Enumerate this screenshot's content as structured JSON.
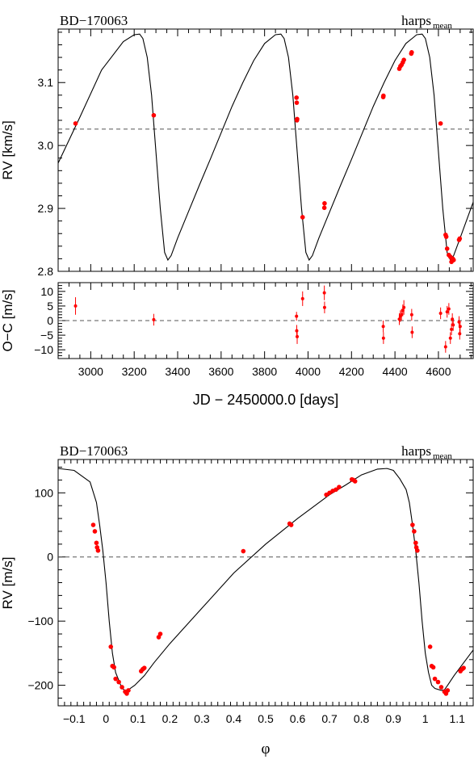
{
  "colors": {
    "points": "#ff0000",
    "curve": "#000000",
    "zero_line": "#555555"
  },
  "chart_data": [
    {
      "type": "scatter",
      "panel": "rv-vs-time",
      "star_label": "BD−170063",
      "instrument_label": "harps",
      "instrument_subscript": "mean",
      "ylabel": "RV [km/s]",
      "xlim": [
        2850,
        4760
      ],
      "ylim": [
        2.8,
        3.185
      ],
      "yticks": [
        "2.8",
        "2.9",
        "3.0",
        "3.1"
      ],
      "systemic_velocity": 3.026,
      "model_curve": {
        "x": [
          2850,
          2950,
          3050,
          3150,
          3200,
          3225,
          3240,
          3260,
          3280,
          3300,
          3320,
          3340,
          3355,
          3370,
          3400,
          3450,
          3500,
          3550,
          3600,
          3650,
          3700,
          3750,
          3800,
          3850,
          3875,
          3890,
          3910,
          3930,
          3950,
          3970,
          3990,
          4005,
          4020,
          4050,
          4100,
          4150,
          4200,
          4250,
          4300,
          4350,
          4400,
          4450,
          4500,
          4525,
          4540,
          4560,
          4580,
          4600,
          4620,
          4640,
          4655,
          4670,
          4700,
          4760
        ],
        "y": [
          2.972,
          3.045,
          3.12,
          3.165,
          3.176,
          3.177,
          3.17,
          3.14,
          3.08,
          2.99,
          2.9,
          2.83,
          2.818,
          2.825,
          2.853,
          2.895,
          2.937,
          2.978,
          3.02,
          3.062,
          3.1,
          3.135,
          3.162,
          3.176,
          3.177,
          3.17,
          3.14,
          3.08,
          2.99,
          2.9,
          2.83,
          2.818,
          2.825,
          2.853,
          2.895,
          2.937,
          2.978,
          3.02,
          3.062,
          3.1,
          3.135,
          3.162,
          3.176,
          3.177,
          3.17,
          3.14,
          3.08,
          2.99,
          2.9,
          2.83,
          2.818,
          2.825,
          2.853,
          2.91
        ]
      },
      "points": {
        "x": [
          2930,
          3290,
          3947,
          3948,
          3949,
          3950,
          3975,
          4075,
          4076,
          4346,
          4347,
          4420,
          4425,
          4430,
          4436,
          4441,
          4475,
          4477,
          4610,
          4633,
          4636,
          4640,
          4648,
          4655,
          4660,
          4663,
          4666,
          4670,
          4695,
          4698
        ],
        "y": [
          3.035,
          3.048,
          3.076,
          3.068,
          3.04,
          3.042,
          2.886,
          2.901,
          2.908,
          3.077,
          3.079,
          3.122,
          3.126,
          3.128,
          3.132,
          3.136,
          3.146,
          3.148,
          3.035,
          2.858,
          2.855,
          2.836,
          2.826,
          2.823,
          2.815,
          2.818,
          2.82,
          2.818,
          2.85,
          2.852
        ]
      }
    },
    {
      "type": "scatter",
      "panel": "residuals",
      "ylabel": "O−C [m/s]",
      "xlabel": "JD − 2450000.0 [days]",
      "xlim": [
        2850,
        4760
      ],
      "ylim": [
        -13,
        13
      ],
      "xticks": [
        "3000",
        "3200",
        "3400",
        "3600",
        "3800",
        "4000",
        "4200",
        "4400",
        "4600"
      ],
      "yticks": [
        "−10",
        "−5",
        "0",
        "5",
        "10"
      ],
      "points": {
        "x": [
          2930,
          3290,
          3947,
          3948,
          3950,
          3975,
          4075,
          4076,
          4346,
          4347,
          4420,
          4425,
          4430,
          4436,
          4441,
          4477,
          4479,
          4610,
          4633,
          4640,
          4648,
          4655,
          4660,
          4664,
          4668,
          4695,
          4698,
          4700
        ],
        "y": [
          5.0,
          0.3,
          1.5,
          -3.5,
          -5.5,
          7.5,
          9.5,
          4.5,
          -2.0,
          -6.0,
          0.5,
          1.5,
          2.0,
          3.5,
          4.5,
          2.0,
          -4.0,
          2.5,
          -9.0,
          3.0,
          4.0,
          -6.0,
          -3.0,
          0.5,
          -1.5,
          -0.5,
          -4.5,
          -2.0
        ],
        "err": [
          3.0,
          2.0,
          1.5,
          2.0,
          2.5,
          2.5,
          2.5,
          2.0,
          2.0,
          2.0,
          2.0,
          2.0,
          2.0,
          2.0,
          2.5,
          2.0,
          2.0,
          2.0,
          2.0,
          2.0,
          2.0,
          2.0,
          2.0,
          2.0,
          2.0,
          2.0,
          2.0,
          2.0
        ]
      }
    },
    {
      "type": "scatter",
      "panel": "rv-vs-phase",
      "star_label": "BD−170063",
      "instrument_label": "harps",
      "instrument_subscript": "mean",
      "ylabel": "RV [m/s]",
      "xlabel": "φ",
      "xlim": [
        -0.15,
        1.15
      ],
      "ylim": [
        -232,
        152
      ],
      "xticks": [
        "−0.1",
        "0",
        "0.1",
        "0.2",
        "0.3",
        "0.4",
        "0.5",
        "0.6",
        "0.7",
        "0.8",
        "0.9",
        "1",
        "1.1"
      ],
      "yticks": [
        "−200",
        "−100",
        "0",
        "100"
      ],
      "model_curve": {
        "x": [
          -0.15,
          -0.1,
          -0.05,
          -0.03,
          -0.02,
          -0.01,
          0.0,
          0.01,
          0.02,
          0.03,
          0.05,
          0.06,
          0.07,
          0.09,
          0.12,
          0.15,
          0.2,
          0.3,
          0.4,
          0.5,
          0.6,
          0.7,
          0.75,
          0.8,
          0.85,
          0.88,
          0.9,
          0.92,
          0.94,
          0.95,
          0.96,
          0.97,
          0.98,
          0.99,
          1.0,
          1.01,
          1.02,
          1.03,
          1.05,
          1.06,
          1.07,
          1.09,
          1.12,
          1.15
        ],
        "y": [
          138,
          135,
          117,
          85,
          50,
          10,
          -40,
          -100,
          -150,
          -180,
          -205,
          -208,
          -207,
          -200,
          -185,
          -165,
          -135,
          -80,
          -25,
          20,
          60,
          97,
          112,
          128,
          137,
          138,
          135,
          122,
          105,
          85,
          50,
          10,
          -40,
          -100,
          -150,
          -180,
          -200,
          -205,
          -208,
          -207,
          -200,
          -185,
          -165,
          -145
        ]
      },
      "points": {
        "x": [
          -0.04,
          -0.035,
          -0.03,
          -0.028,
          -0.025,
          0.015,
          0.02,
          0.025,
          0.03,
          0.04,
          0.05,
          0.06,
          0.065,
          0.07,
          0.11,
          0.115,
          0.12,
          0.165,
          0.17,
          0.43,
          0.575,
          0.58,
          0.69,
          0.7,
          0.71,
          0.72,
          0.73,
          0.77,
          0.775,
          0.78,
          0.96,
          0.965,
          0.97,
          0.972,
          0.975,
          1.015,
          1.02,
          1.025,
          1.03,
          1.04,
          1.05,
          1.06,
          1.065,
          1.07,
          1.11,
          1.115,
          1.12
        ],
        "y": [
          50,
          40,
          22,
          15,
          10,
          -140,
          -170,
          -172,
          -190,
          -195,
          -203,
          -210,
          -213,
          -208,
          -178,
          -175,
          -173,
          -125,
          -120,
          9,
          52,
          50,
          97,
          100,
          103,
          105,
          109,
          121,
          120,
          118,
          50,
          40,
          22,
          15,
          10,
          -140,
          -170,
          -172,
          -190,
          -195,
          -203,
          -210,
          -213,
          -208,
          -178,
          -175,
          -173
        ]
      }
    }
  ]
}
